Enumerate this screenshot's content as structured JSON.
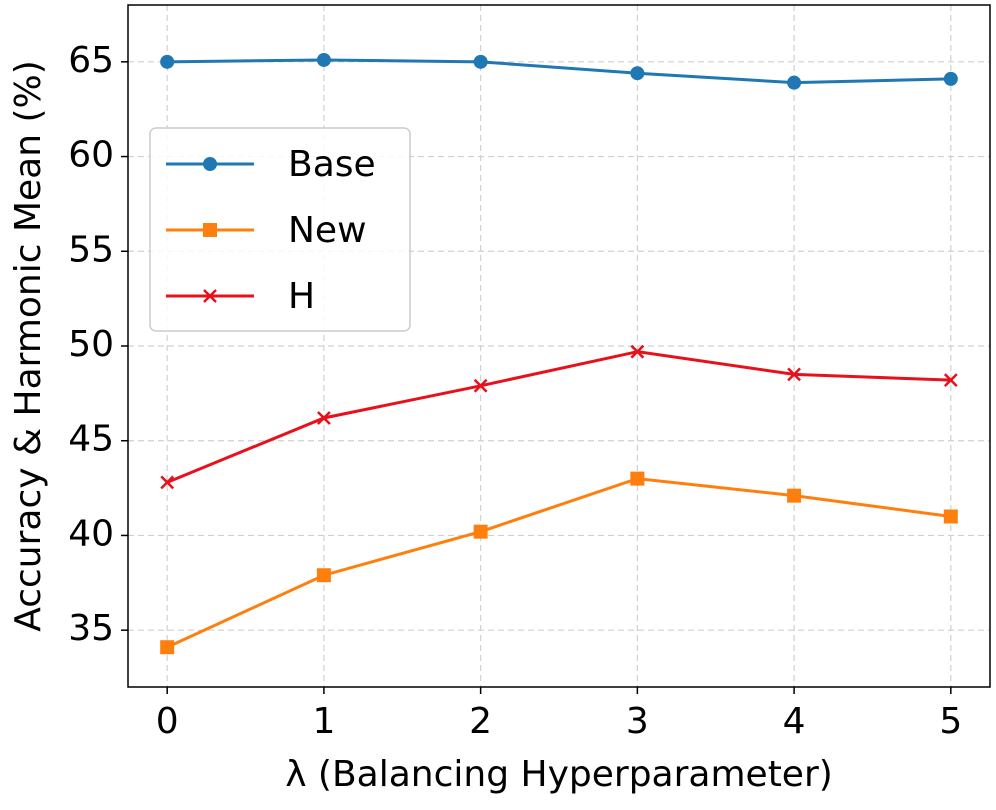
{
  "chart_data": {
    "type": "line",
    "x_label": "λ (Balancing Hyperparameter)",
    "y_label": "Accuracy & Harmonic Mean (%)",
    "x": [
      0,
      1,
      2,
      3,
      4,
      5
    ],
    "series": [
      {
        "name": "Base",
        "color": "#1f77b4",
        "marker": "circle",
        "values": [
          65.0,
          65.1,
          65.0,
          64.4,
          63.9,
          64.1
        ]
      },
      {
        "name": "New",
        "color": "#ff7f0e",
        "marker": "square",
        "values": [
          34.1,
          37.9,
          40.2,
          43.0,
          42.1,
          41.0
        ]
      },
      {
        "name": "H",
        "color": "#e8101a",
        "marker": "x",
        "values": [
          42.8,
          46.2,
          47.9,
          49.7,
          48.5,
          48.2
        ]
      }
    ],
    "xlim": [
      -0.25,
      5.25
    ],
    "ylim": [
      32,
      68
    ],
    "xticks": [
      0,
      1,
      2,
      3,
      4,
      5
    ],
    "yticks": [
      35,
      40,
      45,
      50,
      55,
      60,
      65
    ],
    "grid": true,
    "legend": "upper left"
  }
}
